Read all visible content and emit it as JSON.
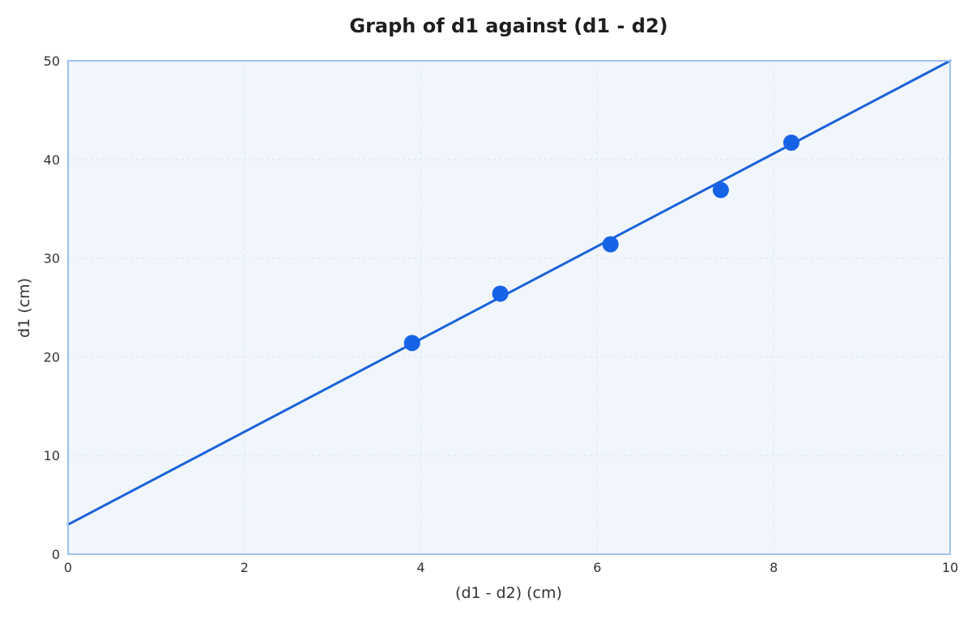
{
  "chart_data": {
    "type": "scatter",
    "title": "Graph of d1 against (d1 - d2)",
    "xlabel": "(d1 - d2) (cm)",
    "ylabel": "d1 (cm)",
    "xlim": [
      0,
      10
    ],
    "ylim": [
      0,
      50
    ],
    "x_ticks": [
      "0",
      "2",
      "4",
      "6",
      "8",
      "10"
    ],
    "y_ticks": [
      "0",
      "10",
      "20",
      "30",
      "40",
      "50"
    ],
    "grid": true,
    "series": [
      {
        "points": [
          {
            "x": 3.9,
            "y": 21.4
          },
          {
            "x": 4.9,
            "y": 26.4
          },
          {
            "x": 6.15,
            "y": 31.4
          },
          {
            "x": 7.4,
            "y": 36.9
          },
          {
            "x": 8.2,
            "y": 41.7
          }
        ]
      }
    ],
    "fit_line": {
      "slope": 4.7,
      "intercept": 3.0
    },
    "colors": {
      "points": "#1763e8",
      "line": "#1a63d9",
      "plot_background": "#f1f6fd",
      "plot_border": "#9dc2f2",
      "grid": "#dbe4f1"
    }
  }
}
